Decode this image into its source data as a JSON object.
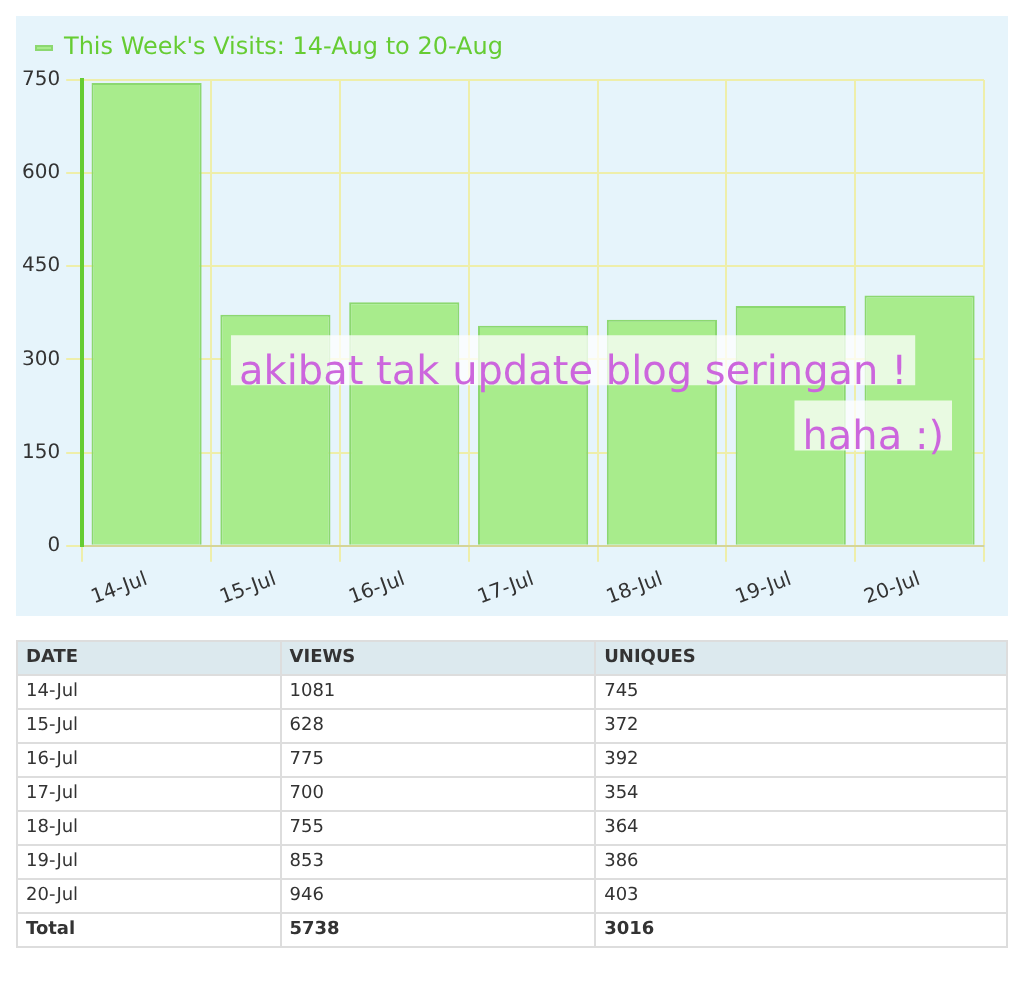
{
  "chart_data": [
    {
      "type": "bar",
      "categories": [
        "14-Jul",
        "15-Jul",
        "16-Jul",
        "17-Jul",
        "18-Jul",
        "19-Jul",
        "20-Jul"
      ],
      "series": [
        {
          "name": "This Week's Visits: 14-Aug to 20-Aug",
          "color": "#a8ec8c",
          "values": [
            745,
            372,
            392,
            354,
            364,
            386,
            403
          ]
        }
      ],
      "ylim": [
        0,
        750
      ],
      "yticks": [
        0,
        150,
        300,
        450,
        600,
        750
      ],
      "grid": true,
      "legend": "top left",
      "annotations": [
        "akibat tak update blog seringan !",
        "haha :)"
      ]
    },
    {
      "type": "other",
      "xlabel": "DATE",
      "categories": [
        "14-Jul",
        "15-Jul",
        "16-Jul",
        "17-Jul",
        "18-Jul",
        "19-Jul",
        "20-Jul"
      ],
      "series": [
        {
          "name": "VIEWS",
          "color": "#333333",
          "values": [
            1081,
            628,
            775,
            700,
            755,
            853,
            946
          ]
        },
        {
          "name": "UNIQUES",
          "color": "#333333",
          "values": [
            745,
            372,
            392,
            354,
            364,
            386,
            403
          ]
        }
      ],
      "data_labels": true,
      "totals": [
        "5738",
        "3016"
      ],
      "annotations": [
        "Total"
      ]
    }
  ]
}
